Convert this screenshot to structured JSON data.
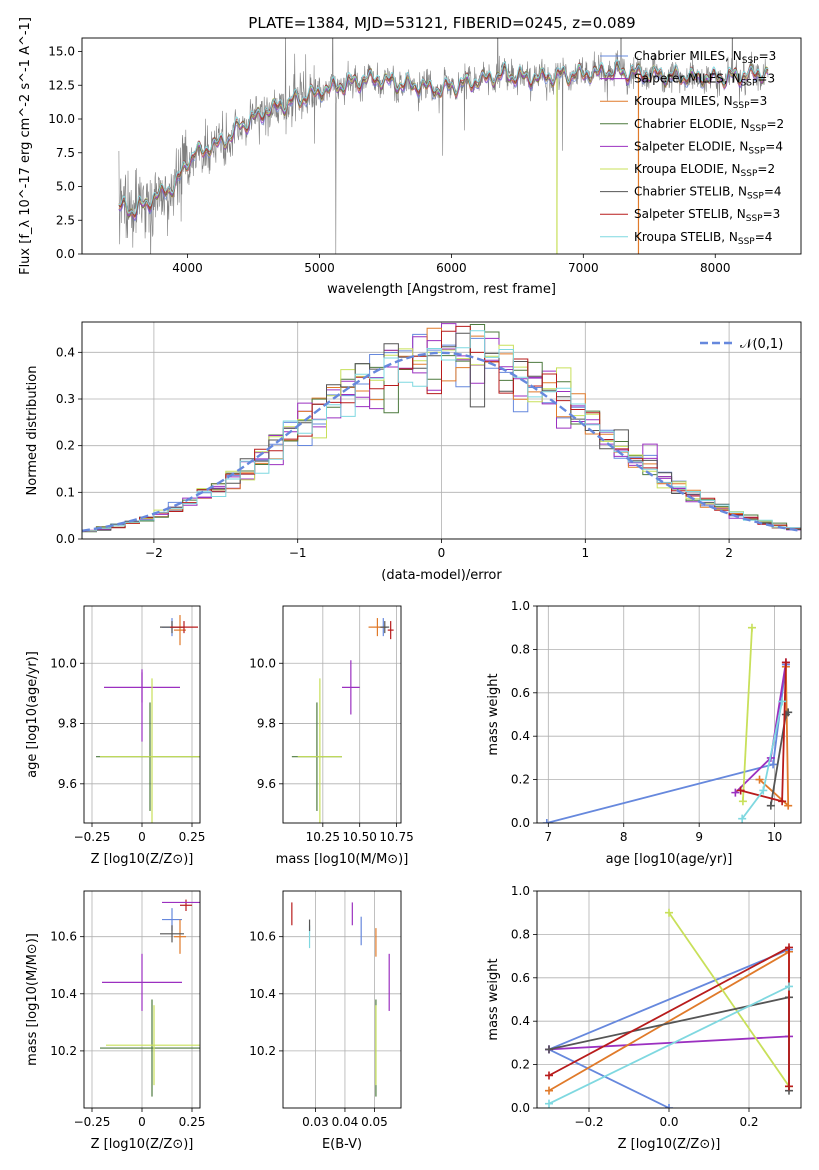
{
  "figure": {
    "title": "PLATE=1384, MJD=53121, FIBERID=0245, z=0.089"
  },
  "series": [
    {
      "name": "Chabrier MILES, N_SSP=3",
      "label_main": "Chabrier MILES, N",
      "label_sub": "SSP",
      "label_tail": "=3",
      "color": "#6688dd"
    },
    {
      "name": "Salpeter MILES, N_SSP=3",
      "label_main": "Salpeter MILES, N",
      "label_sub": "SSP",
      "label_tail": "=3",
      "color": "#9b30c0"
    },
    {
      "name": "Kroupa MILES, N_SSP=3",
      "label_main": "Kroupa MILES, N",
      "label_sub": "SSP",
      "label_tail": "=3",
      "color": "#e07a2a"
    },
    {
      "name": "Chabrier ELODIE, N_SSP=2",
      "label_main": "Chabrier ELODIE, N",
      "label_sub": "SSP",
      "label_tail": "=2",
      "color": "#4d7a3e"
    },
    {
      "name": "Salpeter ELODIE, N_SSP=4",
      "label_main": "Salpeter ELODIE, N",
      "label_sub": "SSP",
      "label_tail": "=4",
      "color": "#9b30c0"
    },
    {
      "name": "Kroupa ELODIE, N_SSP=2",
      "label_main": "Kroupa ELODIE, N",
      "label_sub": "SSP",
      "label_tail": "=2",
      "color": "#c8e05a"
    },
    {
      "name": "Chabrier STELIB, N_SSP=4",
      "label_main": "Chabrier STELIB, N",
      "label_sub": "SSP",
      "label_tail": "=4",
      "color": "#555555"
    },
    {
      "name": "Salpeter STELIB, N_SSP=3",
      "label_main": "Salpeter STELIB, N",
      "label_sub": "SSP",
      "label_tail": "=3",
      "color": "#b81c1c"
    },
    {
      "name": "Kroupa STELIB, N_SSP=4",
      "label_main": "Kroupa STELIB, N",
      "label_sub": "SSP",
      "label_tail": "=4",
      "color": "#7fd8e0"
    }
  ],
  "chart_data": [
    {
      "type": "line",
      "id": "spectrum",
      "title": "PLATE=1384, MJD=53121, FIBERID=0245, z=0.089",
      "xlabel": "wavelength [Angstrom, rest frame]",
      "ylabel": "Flux [f_λ 10^-17 erg cm^-2 s^-1 A^-1]",
      "xlim": [
        3200,
        8650
      ],
      "ylim": [
        0,
        16
      ],
      "xticks": [
        4000,
        5000,
        6000,
        7000,
        8000
      ],
      "yticks": [
        0.0,
        2.5,
        5.0,
        7.5,
        10.0,
        12.5,
        15.0
      ],
      "data_color": "#808080",
      "model_color": "#7fd8e0",
      "continuum": {
        "x": [
          3480,
          3600,
          3700,
          3800,
          3900,
          3950,
          4000,
          4100,
          4200,
          4300,
          4400,
          4500,
          4600,
          4800,
          5000,
          5200,
          5400,
          5600,
          5800,
          5900,
          6000,
          6200,
          6400,
          6600,
          6800,
          7000,
          7200,
          7400,
          7600,
          7800,
          8000,
          8200,
          8400
        ],
        "y": [
          3.5,
          3.2,
          3.8,
          4.5,
          5.0,
          5.8,
          7.0,
          7.6,
          8.0,
          8.5,
          9.5,
          10.0,
          10.6,
          11.3,
          12.0,
          12.6,
          13.0,
          12.6,
          12.4,
          12.1,
          12.4,
          12.8,
          13.3,
          13.0,
          13.2,
          13.3,
          13.5,
          13.4,
          13.2,
          13.1,
          13.0,
          13.2,
          13.4
        ]
      },
      "legend_position": "upper right"
    },
    {
      "type": "histogram",
      "id": "residuals",
      "xlabel": "(data-model)/error",
      "ylabel": "Normed distribution",
      "xlim": [
        -2.5,
        2.5
      ],
      "ylim": [
        0,
        0.465
      ],
      "xticks": [
        -2,
        -1,
        0,
        1,
        2
      ],
      "yticks": [
        0.0,
        0.1,
        0.2,
        0.3,
        0.4
      ],
      "bin_width": 0.1,
      "reference_curve": {
        "label": "𝒩(0,1)",
        "mean": 0,
        "sigma": 1,
        "color": "#6688dd",
        "style": "dashed"
      },
      "legend_position": "upper right"
    },
    {
      "type": "errorbar",
      "id": "age_vs_Z",
      "xlabel": "Z [log10(Z/Z⊙)]",
      "ylabel": "age [log10(age/yr)]",
      "xlim": [
        -0.29,
        0.29
      ],
      "ylim": [
        9.47,
        10.19
      ],
      "xticks": [
        -0.25,
        0.0,
        0.25
      ],
      "yticks": [
        9.6,
        9.8,
        10.0
      ],
      "points": [
        {
          "series": 0,
          "x": 0.15,
          "y": 10.12,
          "xerr": 0.05,
          "yerr": 0.03
        },
        {
          "series": 2,
          "x": 0.19,
          "y": 10.11,
          "xerr": 0.03,
          "yerr": 0.05
        },
        {
          "series": 3,
          "x": 0.04,
          "y": 9.69,
          "xerr": 0.27,
          "yerr": 0.18
        },
        {
          "series": 4,
          "x": 0.0,
          "y": 9.92,
          "xerr": 0.19,
          "yerr": 0.05
        },
        {
          "series": 5,
          "x": 0.05,
          "y": 9.69,
          "xerr": 0.26,
          "yerr": 0.26
        },
        {
          "series": 6,
          "x": 0.15,
          "y": 10.12,
          "xerr": 0.06,
          "yerr": 0.02
        },
        {
          "series": 7,
          "x": 0.21,
          "y": 10.12,
          "xerr": 0.07,
          "yerr": 0.02
        },
        {
          "series": 1,
          "x": 0.0,
          "y": 9.86,
          "xerr": 0.0,
          "yerr": 0.12
        }
      ]
    },
    {
      "type": "errorbar",
      "id": "age_vs_mass",
      "xlabel": "mass [log10(M/M⊙)]",
      "ylabel": "",
      "xlim": [
        9.98,
        10.78
      ],
      "ylim": [
        9.47,
        10.19
      ],
      "xticks": [
        10.25,
        10.5,
        10.75
      ],
      "xtick_labels": [
        "10.25",
        "10.50",
        "10.75"
      ],
      "yticks": [
        9.6,
        9.8,
        10.0
      ],
      "points": [
        {
          "series": 0,
          "x": 10.66,
          "y": 10.12,
          "xerr": 0.03,
          "yerr": 0.03
        },
        {
          "series": 2,
          "x": 10.62,
          "y": 10.12,
          "xerr": 0.06,
          "yerr": 0.03
        },
        {
          "series": 3,
          "x": 10.21,
          "y": 9.69,
          "xerr": 0.17,
          "yerr": 0.18
        },
        {
          "series": 4,
          "x": 10.44,
          "y": 9.92,
          "xerr": 0.06,
          "yerr": 0.09
        },
        {
          "series": 5,
          "x": 10.23,
          "y": 9.69,
          "xerr": 0.15,
          "yerr": 0.26
        },
        {
          "series": 6,
          "x": 10.67,
          "y": 10.12,
          "xerr": 0.03,
          "yerr": 0.02
        },
        {
          "series": 7,
          "x": 10.71,
          "y": 10.11,
          "xerr": 0.02,
          "yerr": 0.03
        }
      ]
    },
    {
      "type": "line",
      "id": "weight_vs_age",
      "xlabel": "age [log10(age/yr)]",
      "ylabel": "mass weight",
      "xlim": [
        6.85,
        10.35
      ],
      "ylim": [
        0.0,
        1.0
      ],
      "xticks": [
        7,
        8,
        9,
        10
      ],
      "yticks": [
        0.0,
        0.2,
        0.4,
        0.6,
        0.8,
        1.0
      ],
      "lines": [
        {
          "series": 0,
          "x": [
            6.98,
            9.98,
            10.15
          ],
          "y": [
            0.0,
            0.27,
            0.73
          ]
        },
        {
          "series": 1,
          "x": [
            9.48,
            9.95,
            10.15
          ],
          "y": [
            0.14,
            0.3,
            0.74
          ]
        },
        {
          "series": 2,
          "x": [
            9.8,
            10.18,
            10.15
          ],
          "y": [
            0.2,
            0.08,
            0.72
          ]
        },
        {
          "series": 5,
          "x": [
            9.58,
            9.7
          ],
          "y": [
            0.1,
            0.9
          ]
        },
        {
          "series": 6,
          "x": [
            9.95,
            10.15,
            10.18
          ],
          "y": [
            0.08,
            0.5,
            0.51
          ]
        },
        {
          "series": 7,
          "x": [
            9.55,
            10.1,
            10.15
          ],
          "y": [
            0.15,
            0.1,
            0.74
          ]
        },
        {
          "series": 8,
          "x": [
            9.57,
            9.85,
            10.1
          ],
          "y": [
            0.02,
            0.15,
            0.56
          ]
        }
      ]
    },
    {
      "type": "errorbar",
      "id": "mass_vs_Z",
      "xlabel": "Z [log10(Z/Z⊙)]",
      "ylabel": "mass [log10(M/M⊙)]",
      "xlim": [
        -0.29,
        0.29
      ],
      "ylim": [
        10.0,
        10.76
      ],
      "xticks": [
        -0.25,
        0.0,
        0.25
      ],
      "yticks": [
        10.2,
        10.4,
        10.6
      ],
      "points": [
        {
          "series": 0,
          "x": 0.15,
          "y": 10.66,
          "xerr": 0.05,
          "yerr": 0.04
        },
        {
          "series": 2,
          "x": 0.19,
          "y": 10.6,
          "xerr": 0.03,
          "yerr": 0.06
        },
        {
          "series": 3,
          "x": 0.05,
          "y": 10.21,
          "xerr": 0.26,
          "yerr": 0.17
        },
        {
          "series": 4,
          "x": 0.0,
          "y": 10.44,
          "xerr": 0.2,
          "yerr": 0.1
        },
        {
          "series": 5,
          "x": 0.06,
          "y": 10.22,
          "xerr": 0.24,
          "yerr": 0.14
        },
        {
          "series": 6,
          "x": 0.15,
          "y": 10.61,
          "xerr": 0.06,
          "yerr": 0.03
        },
        {
          "series": 7,
          "x": 0.22,
          "y": 10.71,
          "xerr": 0.03,
          "yerr": 0.02
        },
        {
          "series": 1,
          "x": 0.2,
          "y": 10.72,
          "xerr": 0.1,
          "yerr": 0.0
        }
      ]
    },
    {
      "type": "errorbar",
      "id": "mass_vs_ebv",
      "xlabel": "E(B-V)",
      "ylabel": "",
      "xlim": [
        0.019,
        0.059
      ],
      "ylim": [
        10.0,
        10.76
      ],
      "xticks": [
        0.03,
        0.04,
        0.05
      ],
      "xtick_labels": [
        "0.03",
        "0.04",
        "0.05"
      ],
      "yticks": [
        10.2,
        10.4,
        10.6
      ],
      "points": [
        {
          "series": 7,
          "x": 0.022,
          "y": 10.68,
          "xerr": 0.0,
          "yerr": 0.04
        },
        {
          "series": 8,
          "x": 0.028,
          "y": 10.6,
          "xerr": 0.0,
          "yerr": 0.04
        },
        {
          "series": 6,
          "x": 0.028,
          "y": 10.64,
          "xerr": 0.0,
          "yerr": 0.02
        },
        {
          "series": 0,
          "x": 0.0455,
          "y": 10.62,
          "xerr": 0.0,
          "yerr": 0.05
        },
        {
          "series": 1,
          "x": 0.0425,
          "y": 10.68,
          "xerr": 0.0,
          "yerr": 0.04
        },
        {
          "series": 2,
          "x": 0.0505,
          "y": 10.58,
          "xerr": 0.0,
          "yerr": 0.05
        },
        {
          "series": 3,
          "x": 0.0505,
          "y": 10.21,
          "xerr": 0.0,
          "yerr": 0.17
        },
        {
          "series": 5,
          "x": 0.0505,
          "y": 10.22,
          "xerr": 0.0,
          "yerr": 0.14
        },
        {
          "series": 4,
          "x": 0.055,
          "y": 10.44,
          "xerr": 0.0,
          "yerr": 0.1
        }
      ]
    },
    {
      "type": "line",
      "id": "weight_vs_Z",
      "xlabel": "Z [log10(Z/Z⊙)]",
      "ylabel": "mass weight",
      "xlim": [
        -0.33,
        0.33
      ],
      "ylim": [
        0.0,
        1.0
      ],
      "xticks": [
        -0.2,
        0.0,
        0.2
      ],
      "xtick_labels": [
        "−0.2",
        "0.0",
        "0.2"
      ],
      "yticks": [
        0.0,
        0.2,
        0.4,
        0.6,
        0.8,
        1.0
      ],
      "lines": [
        {
          "series": 0,
          "x": [
            0.0,
            -0.3,
            0.3
          ],
          "y": [
            0.0,
            0.27,
            0.73
          ]
        },
        {
          "series": 1,
          "x": [
            -0.3,
            0.3
          ],
          "y": [
            0.27,
            0.33
          ]
        },
        {
          "series": 2,
          "x": [
            -0.3,
            0.3,
            0.3
          ],
          "y": [
            0.08,
            0.72,
            0.1
          ]
        },
        {
          "series": 5,
          "x": [
            0.0,
            0.3
          ],
          "y": [
            0.9,
            0.1
          ]
        },
        {
          "series": 6,
          "x": [
            -0.3,
            0.3,
            0.3
          ],
          "y": [
            0.27,
            0.51,
            0.08
          ]
        },
        {
          "series": 7,
          "x": [
            -0.3,
            0.3,
            0.3
          ],
          "y": [
            0.15,
            0.74,
            0.1
          ]
        },
        {
          "series": 8,
          "x": [
            -0.3,
            0.3
          ],
          "y": [
            0.02,
            0.56
          ]
        }
      ]
    }
  ]
}
